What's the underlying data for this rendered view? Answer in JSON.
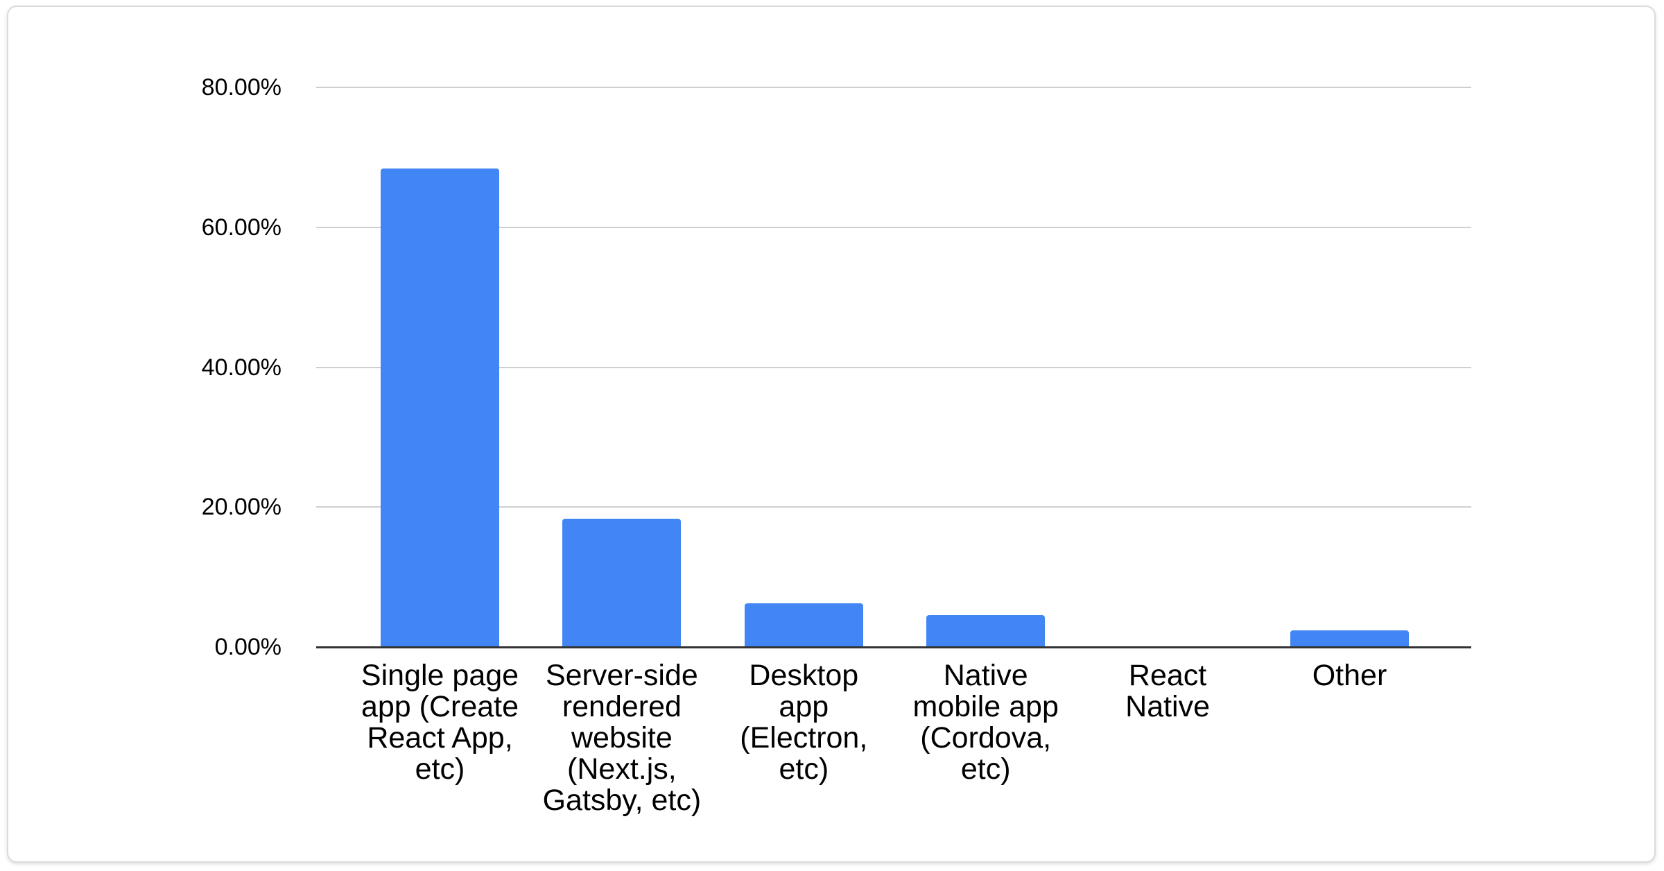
{
  "chart_data": {
    "type": "bar",
    "title": "",
    "xlabel": "",
    "ylabel": "",
    "categories": [
      "Single page app (Create React App, etc)",
      "Server-side rendered website (Next.js, Gatsby, etc)",
      "Desktop app (Electron, etc)",
      "Native mobile app (Cordova, etc)",
      "React Native",
      "Other"
    ],
    "values": [
      68.4,
      18.3,
      6.2,
      4.6,
      0,
      2.4
    ],
    "value_unit": "percent",
    "ylim": [
      0,
      80
    ],
    "y_ticks": [
      {
        "value": 80,
        "label": "80.00%"
      },
      {
        "value": 60,
        "label": "60.00%"
      },
      {
        "value": 40,
        "label": "40.00%"
      },
      {
        "value": 20,
        "label": "20.00%"
      },
      {
        "value": 0,
        "label": "0.00%"
      }
    ],
    "grid": true,
    "legend_position": "none"
  },
  "colors": {
    "bar": "#4285f4",
    "gridline": "#cfcfcf",
    "axis_line": "#333333",
    "text": "#000000",
    "card_background": "#ffffff",
    "card_border": "#d9dbde",
    "page_background": "#ffffff"
  }
}
